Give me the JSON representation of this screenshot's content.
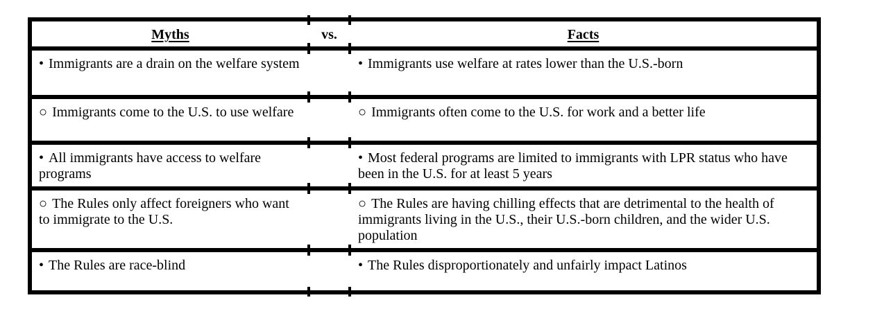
{
  "page": {
    "background_color": "#ffffff",
    "border_color": "#000000",
    "text_color": "#000000"
  },
  "table": {
    "header": {
      "myths_label": "Myths",
      "vs_label": "vs.",
      "facts_label": "Facts"
    },
    "rows": [
      {
        "myth_bullet": "•",
        "myth_text": "Immigrants are a drain on the welfare system",
        "fact_bullet": "•",
        "fact_text": "Immigrants use welfare at rates lower than the U.S.-born"
      },
      {
        "myth_bullet": "○",
        "myth_text": "Immigrants come to the U.S. to use welfare",
        "fact_bullet": "○",
        "fact_text": "Immigrants often come to the U.S. for work and a better life"
      },
      {
        "myth_bullet": "•",
        "myth_text": "All immigrants have access to welfare programs",
        "fact_bullet": "•",
        "fact_text": "Most federal programs are limited to immigrants with LPR status who have been in the U.S. for at least 5 years"
      },
      {
        "myth_bullet": "○",
        "myth_text": "The Rules only affect foreigners who want to immigrate to the U.S.",
        "fact_bullet": "○",
        "fact_text": "The Rules are having chilling effects that are detrimental to the health of immigrants living in the U.S., their U.S.-born children, and the wider U.S. population"
      },
      {
        "myth_bullet": "•",
        "myth_text": "The Rules are race-blind",
        "fact_bullet": "•",
        "fact_text": "The Rules disproportionately and unfairly impact Latinos"
      }
    ]
  }
}
